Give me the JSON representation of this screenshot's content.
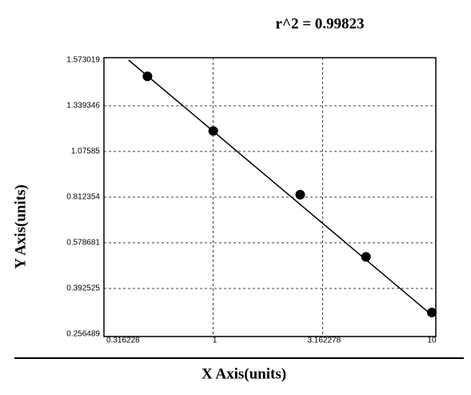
{
  "chart_data": {
    "type": "scatter",
    "title": "r^2  =  0.99823",
    "x_label": "X Axis(units)",
    "y_label": "Y Axis(units)",
    "x_scale": "log",
    "grid": true,
    "xlim": [
      0.316228,
      10
    ],
    "xticks": [
      0.316228,
      1,
      3.162278,
      10
    ],
    "ylim": [
      0.256489,
      1.573019
    ],
    "yticks": [
      0.256489,
      0.392525,
      0.578681,
      0.812354,
      1.07585,
      1.339346,
      1.573019
    ],
    "series": [
      {
        "name": "points",
        "color": "#000000",
        "x": [
          0.5,
          1,
          2.5,
          5,
          10
        ],
        "values": [
          1.49,
          1.194,
          0.826,
          0.521,
          0.321
        ]
      },
      {
        "name": "fit",
        "color": "#000000",
        "x": [
          0.41,
          10
        ],
        "values": [
          1.573,
          0.313
        ]
      }
    ]
  }
}
